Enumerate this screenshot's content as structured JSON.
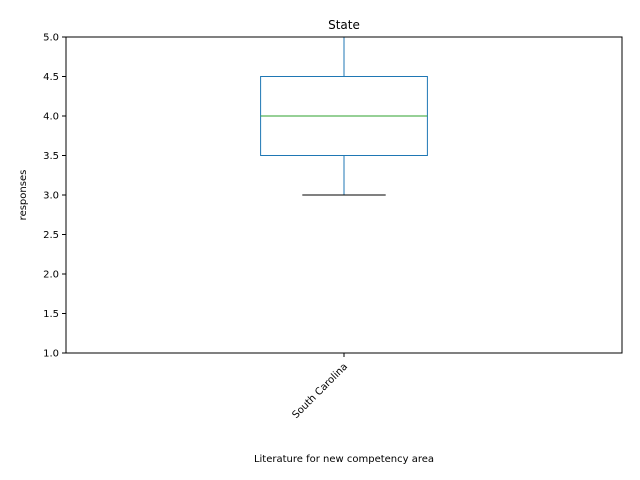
{
  "chart_data": {
    "type": "box",
    "title": "State",
    "xlabel": "Literature for new competency area",
    "ylabel": "responses",
    "ylim": [
      1.0,
      5.0
    ],
    "yticks": [
      "1.0",
      "1.5",
      "2.0",
      "2.5",
      "3.0",
      "3.5",
      "4.0",
      "4.5",
      "5.0"
    ],
    "categories": [
      "South Carolina"
    ],
    "boxes": [
      {
        "category": "South Carolina",
        "whisker_low": 3.0,
        "q1": 3.5,
        "median": 4.0,
        "q3": 4.5,
        "whisker_high": 5.0
      }
    ],
    "colors": {
      "box": "#1f77b4",
      "median": "#2ca02c",
      "cap": "#000000"
    },
    "grid": false
  }
}
